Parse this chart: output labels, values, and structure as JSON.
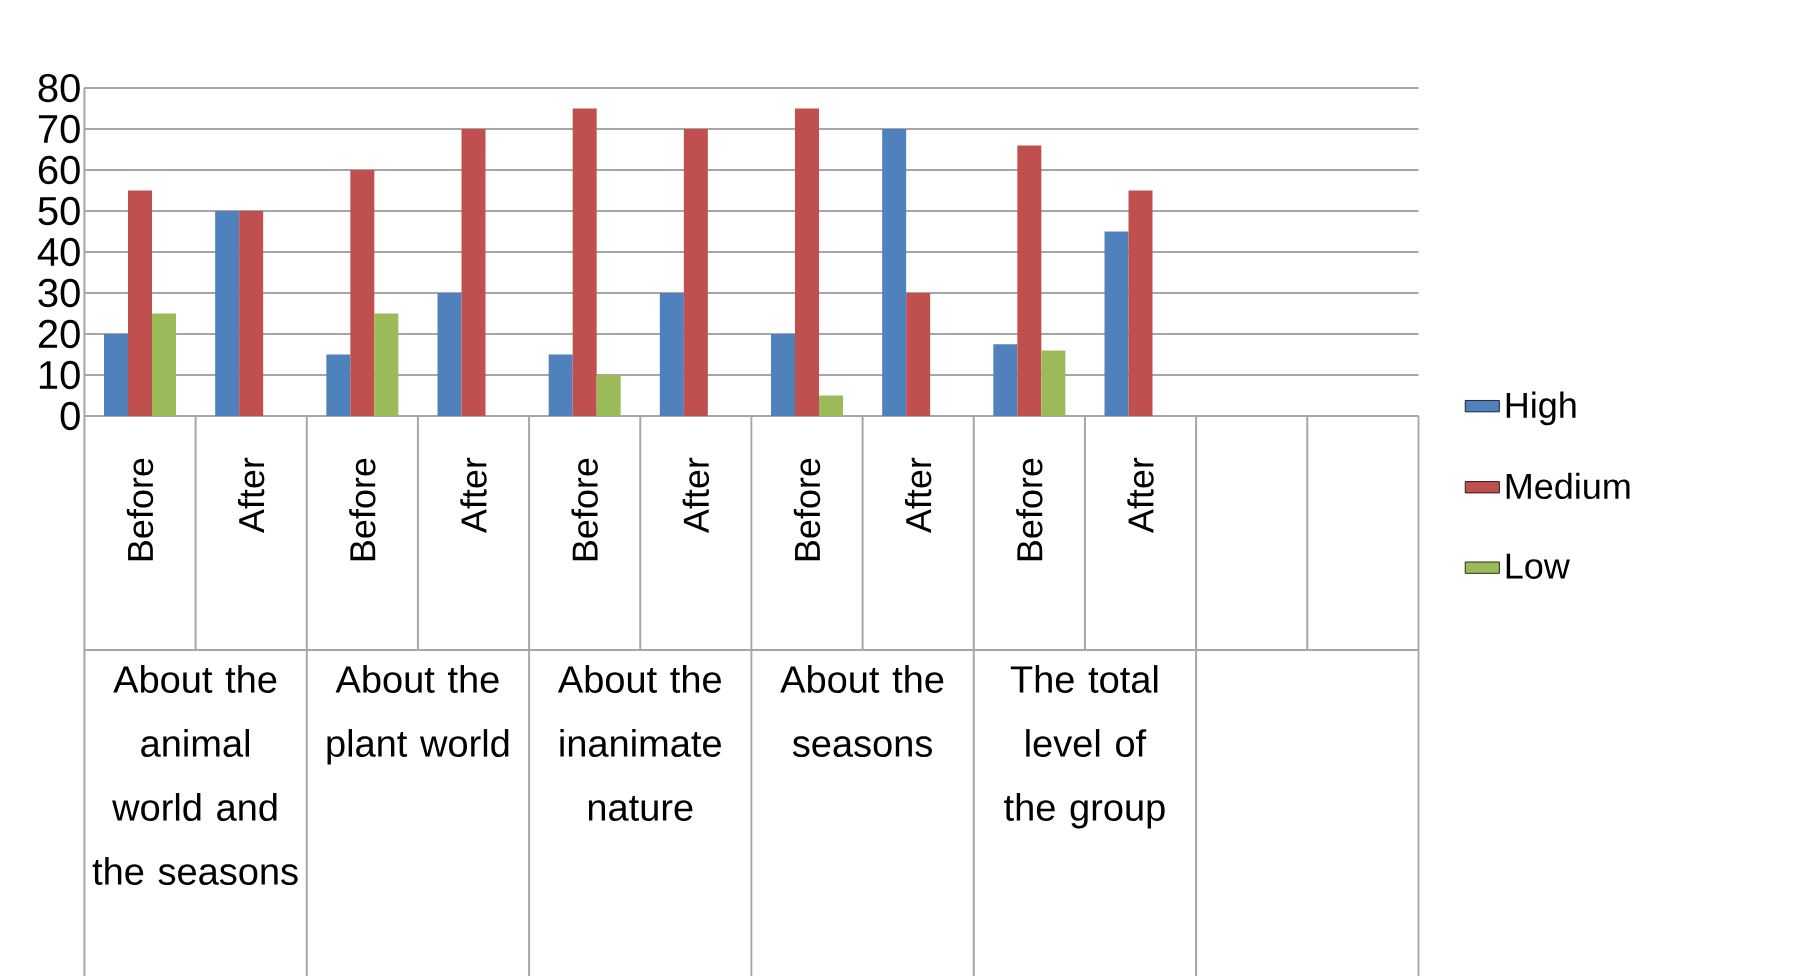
{
  "chart_data": {
    "type": "bar",
    "categories": [
      "Before",
      "After",
      "Before",
      "After",
      "Before",
      "After",
      "Before",
      "After",
      "Before",
      "After",
      null,
      null
    ],
    "series": [
      {
        "name": "High",
        "color": "#4f81bd",
        "values": [
          20,
          50,
          15,
          30,
          15,
          30,
          20,
          70,
          17.5,
          45,
          null,
          null
        ]
      },
      {
        "name": "Medium",
        "color": "#c0504d",
        "values": [
          55,
          50,
          60,
          70,
          75,
          70,
          75,
          30,
          66,
          55,
          null,
          null
        ]
      },
      {
        "name": "Low",
        "color": "#9bbb59",
        "values": [
          25,
          null,
          25,
          null,
          10,
          null,
          5,
          null,
          16,
          null,
          null,
          null
        ]
      }
    ],
    "annotations": [
      "About the animal world and the seasons",
      "About the plant world",
      "About the inanimate nature",
      "About the seasons",
      "The total level of the group"
    ],
    "ylim": [
      0,
      80
    ],
    "yticks": [
      0,
      10,
      20,
      30,
      40,
      50,
      60,
      70,
      80
    ],
    "grid": "y",
    "legend": "right"
  }
}
